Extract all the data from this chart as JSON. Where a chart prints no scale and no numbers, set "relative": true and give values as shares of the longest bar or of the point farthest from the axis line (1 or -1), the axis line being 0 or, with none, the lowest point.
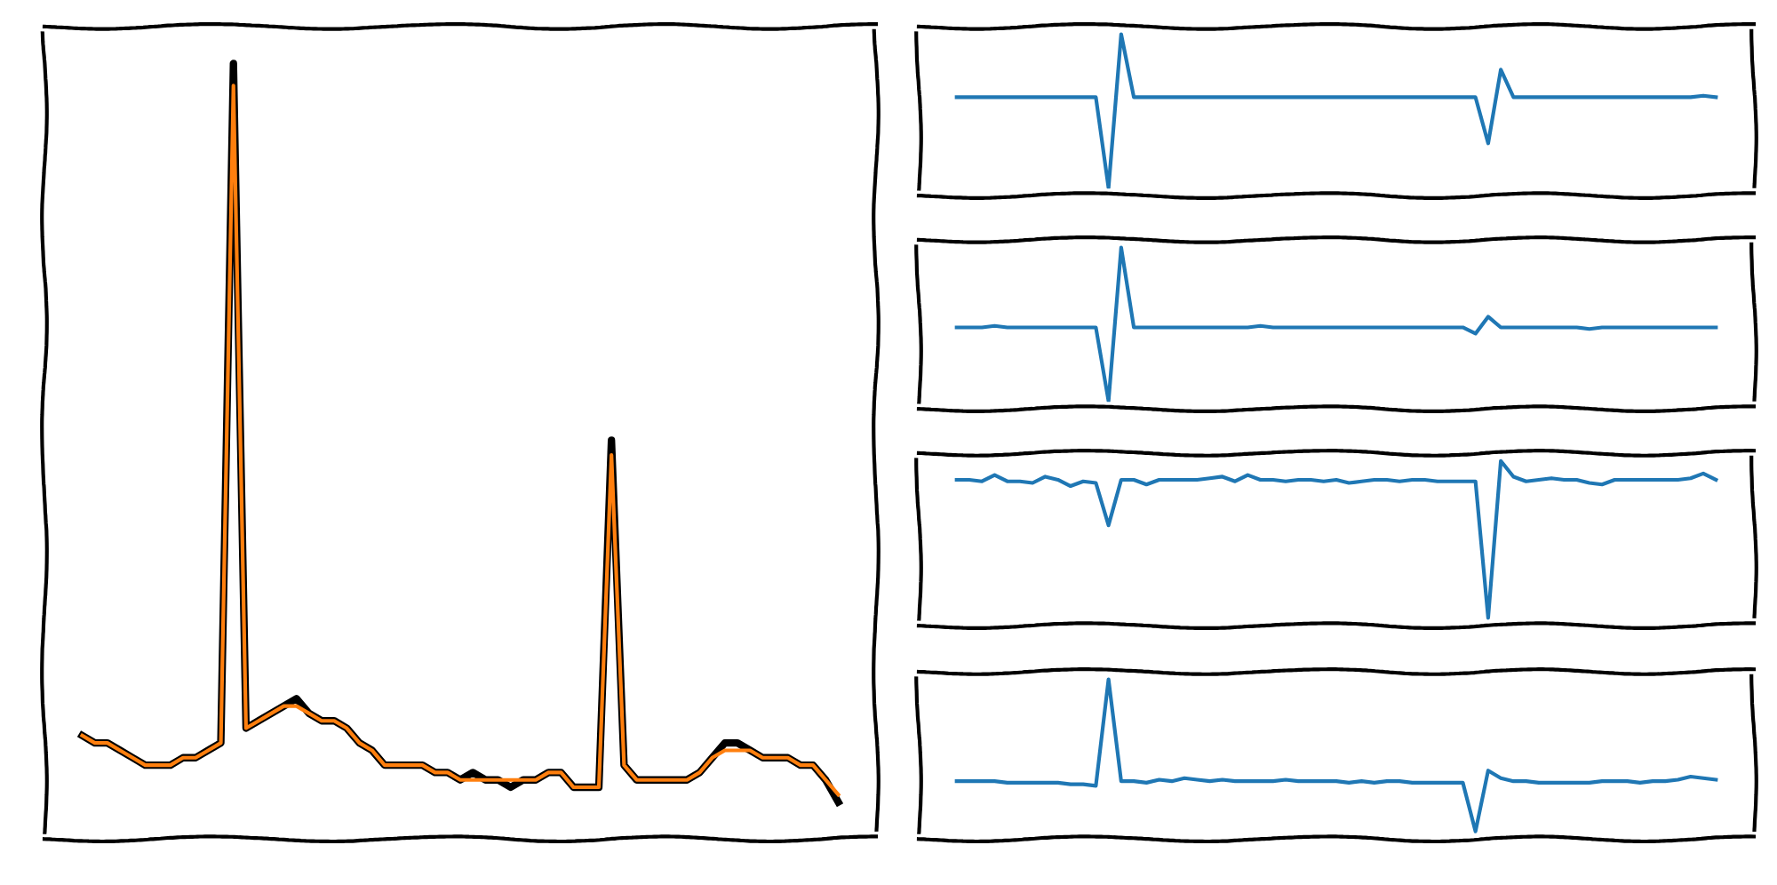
{
  "chart_data": [
    {
      "type": "line",
      "relative": true,
      "tick_labels": false,
      "categories": [
        null,
        null,
        null,
        null,
        null,
        null,
        null,
        null,
        null,
        null,
        null,
        null,
        null,
        null,
        null,
        null,
        null,
        null,
        null,
        null,
        null,
        null,
        null,
        null,
        null,
        null,
        null,
        null,
        null,
        null,
        null,
        null,
        null,
        null,
        null,
        null,
        null,
        null,
        null,
        null,
        null,
        null,
        null,
        null,
        null,
        null,
        null,
        null,
        null,
        null,
        null,
        null,
        null,
        null,
        null,
        null,
        null,
        null,
        null,
        null,
        null
      ],
      "series": [
        {
          "color": "#000000",
          "values": [
            0.09,
            0.08,
            0.08,
            0.07,
            0.06,
            0.05,
            0.05,
            0.05,
            0.06,
            0.06,
            0.07,
            0.08,
            1.0,
            0.1,
            0.11,
            0.12,
            0.13,
            0.14,
            0.12,
            0.11,
            0.11,
            0.1,
            0.08,
            0.07,
            0.05,
            0.05,
            0.05,
            0.05,
            0.04,
            0.04,
            0.03,
            0.04,
            0.03,
            0.03,
            0.02,
            0.03,
            0.03,
            0.04,
            0.04,
            0.02,
            0.02,
            0.02,
            0.49,
            0.05,
            0.03,
            0.03,
            0.03,
            0.03,
            0.03,
            0.04,
            0.06,
            0.08,
            0.08,
            0.07,
            0.06,
            0.06,
            0.06,
            0.05,
            0.05,
            0.03,
            0.0
          ]
        },
        {
          "color": "#ff7f0e",
          "values": [
            0.09,
            0.08,
            0.08,
            0.07,
            0.06,
            0.05,
            0.05,
            0.05,
            0.06,
            0.06,
            0.07,
            0.08,
            0.97,
            0.1,
            0.11,
            0.12,
            0.13,
            0.13,
            0.12,
            0.11,
            0.11,
            0.1,
            0.08,
            0.07,
            0.05,
            0.05,
            0.05,
            0.05,
            0.04,
            0.04,
            0.03,
            0.03,
            0.03,
            0.03,
            0.03,
            0.03,
            0.03,
            0.04,
            0.04,
            0.02,
            0.02,
            0.02,
            0.47,
            0.05,
            0.03,
            0.03,
            0.03,
            0.03,
            0.03,
            0.04,
            0.06,
            0.07,
            0.07,
            0.07,
            0.06,
            0.06,
            0.06,
            0.05,
            0.05,
            0.03,
            0.01
          ]
        }
      ]
    },
    {
      "type": "line",
      "relative": true,
      "tick_labels": false,
      "categories": [
        null,
        null,
        null,
        null,
        null,
        null,
        null,
        null,
        null,
        null,
        null,
        null,
        null,
        null,
        null,
        null,
        null,
        null,
        null,
        null,
        null,
        null,
        null,
        null,
        null,
        null,
        null,
        null,
        null,
        null,
        null,
        null,
        null,
        null,
        null,
        null,
        null,
        null,
        null,
        null,
        null,
        null,
        null,
        null,
        null,
        null,
        null,
        null,
        null,
        null,
        null,
        null,
        null,
        null,
        null,
        null,
        null,
        null,
        null,
        null,
        null
      ],
      "series": [
        {
          "color": "#1f77b4",
          "values": [
            0.59,
            0.59,
            0.59,
            0.59,
            0.59,
            0.59,
            0.59,
            0.59,
            0.59,
            0.59,
            0.59,
            0.59,
            0.0,
            1.0,
            0.59,
            0.59,
            0.59,
            0.59,
            0.59,
            0.59,
            0.59,
            0.59,
            0.59,
            0.59,
            0.59,
            0.59,
            0.59,
            0.59,
            0.59,
            0.59,
            0.59,
            0.59,
            0.59,
            0.59,
            0.59,
            0.59,
            0.59,
            0.59,
            0.59,
            0.59,
            0.59,
            0.59,
            0.29,
            0.77,
            0.59,
            0.59,
            0.59,
            0.59,
            0.59,
            0.59,
            0.59,
            0.59,
            0.59,
            0.59,
            0.59,
            0.59,
            0.59,
            0.59,
            0.59,
            0.6,
            0.59
          ]
        }
      ]
    },
    {
      "type": "line",
      "relative": true,
      "tick_labels": false,
      "categories": [
        null,
        null,
        null,
        null,
        null,
        null,
        null,
        null,
        null,
        null,
        null,
        null,
        null,
        null,
        null,
        null,
        null,
        null,
        null,
        null,
        null,
        null,
        null,
        null,
        null,
        null,
        null,
        null,
        null,
        null,
        null,
        null,
        null,
        null,
        null,
        null,
        null,
        null,
        null,
        null,
        null,
        null,
        null,
        null,
        null,
        null,
        null,
        null,
        null,
        null,
        null,
        null,
        null,
        null,
        null,
        null,
        null,
        null,
        null,
        null,
        null
      ],
      "series": [
        {
          "color": "#1f77b4",
          "values": [
            0.48,
            0.48,
            0.48,
            0.49,
            0.48,
            0.48,
            0.48,
            0.48,
            0.48,
            0.48,
            0.48,
            0.48,
            0.0,
            1.0,
            0.48,
            0.48,
            0.48,
            0.48,
            0.48,
            0.48,
            0.48,
            0.48,
            0.48,
            0.48,
            0.49,
            0.48,
            0.48,
            0.48,
            0.48,
            0.48,
            0.48,
            0.48,
            0.48,
            0.48,
            0.48,
            0.48,
            0.48,
            0.48,
            0.48,
            0.48,
            0.48,
            0.44,
            0.55,
            0.48,
            0.48,
            0.48,
            0.48,
            0.48,
            0.48,
            0.48,
            0.47,
            0.48,
            0.48,
            0.48,
            0.48,
            0.48,
            0.48,
            0.48,
            0.48,
            0.48,
            0.48
          ]
        }
      ]
    },
    {
      "type": "line",
      "relative": true,
      "tick_labels": false,
      "categories": [
        null,
        null,
        null,
        null,
        null,
        null,
        null,
        null,
        null,
        null,
        null,
        null,
        null,
        null,
        null,
        null,
        null,
        null,
        null,
        null,
        null,
        null,
        null,
        null,
        null,
        null,
        null,
        null,
        null,
        null,
        null,
        null,
        null,
        null,
        null,
        null,
        null,
        null,
        null,
        null,
        null,
        null,
        null,
        null,
        null,
        null,
        null,
        null,
        null,
        null,
        null,
        null,
        null,
        null,
        null,
        null,
        null,
        null,
        null,
        null,
        null
      ],
      "series": [
        {
          "color": "#1f77b4",
          "values": [
            0.88,
            0.88,
            0.87,
            0.91,
            0.87,
            0.87,
            0.86,
            0.9,
            0.88,
            0.84,
            0.87,
            0.86,
            0.59,
            0.88,
            0.88,
            0.85,
            0.88,
            0.88,
            0.88,
            0.88,
            0.89,
            0.9,
            0.87,
            0.91,
            0.88,
            0.88,
            0.87,
            0.88,
            0.88,
            0.87,
            0.88,
            0.86,
            0.87,
            0.88,
            0.88,
            0.87,
            0.88,
            0.88,
            0.87,
            0.87,
            0.87,
            0.87,
            0.0,
            1.0,
            0.9,
            0.87,
            0.88,
            0.89,
            0.88,
            0.88,
            0.86,
            0.85,
            0.88,
            0.88,
            0.88,
            0.88,
            0.88,
            0.88,
            0.89,
            0.92,
            0.88
          ]
        }
      ]
    },
    {
      "type": "line",
      "relative": true,
      "tick_labels": false,
      "categories": [
        null,
        null,
        null,
        null,
        null,
        null,
        null,
        null,
        null,
        null,
        null,
        null,
        null,
        null,
        null,
        null,
        null,
        null,
        null,
        null,
        null,
        null,
        null,
        null,
        null,
        null,
        null,
        null,
        null,
        null,
        null,
        null,
        null,
        null,
        null,
        null,
        null,
        null,
        null,
        null,
        null,
        null,
        null,
        null,
        null,
        null,
        null,
        null,
        null,
        null,
        null,
        null,
        null,
        null,
        null,
        null,
        null,
        null,
        null,
        null,
        null
      ],
      "series": [
        {
          "color": "#1f77b4",
          "values": [
            0.33,
            0.33,
            0.33,
            0.33,
            0.32,
            0.32,
            0.32,
            0.32,
            0.32,
            0.31,
            0.31,
            0.3,
            1.0,
            0.33,
            0.33,
            0.32,
            0.34,
            0.33,
            0.35,
            0.34,
            0.33,
            0.34,
            0.33,
            0.33,
            0.33,
            0.33,
            0.34,
            0.33,
            0.33,
            0.33,
            0.33,
            0.32,
            0.33,
            0.32,
            0.33,
            0.33,
            0.32,
            0.32,
            0.32,
            0.32,
            0.32,
            0.0,
            0.4,
            0.35,
            0.33,
            0.33,
            0.32,
            0.32,
            0.32,
            0.32,
            0.32,
            0.33,
            0.33,
            0.33,
            0.32,
            0.33,
            0.33,
            0.34,
            0.36,
            0.35,
            0.34
          ]
        }
      ]
    }
  ]
}
